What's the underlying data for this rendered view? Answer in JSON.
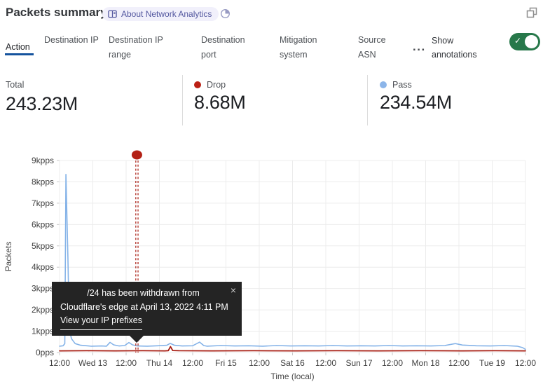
{
  "header": {
    "title": "Packets summary",
    "about_badge": "About Network Analytics"
  },
  "tabs": {
    "items": [
      {
        "label": "Action",
        "selected": true
      },
      {
        "label": "Destination IP",
        "selected": false
      },
      {
        "label": "Destination IP range",
        "selected": false
      },
      {
        "label": "Destination port",
        "selected": false
      },
      {
        "label": "Mitigation system",
        "selected": false
      },
      {
        "label": "Source ASN",
        "selected": false
      }
    ],
    "more_label": "...",
    "show_annotations_label": "Show annotations",
    "annotations_toggle_on": true
  },
  "stats": {
    "items": [
      {
        "label": "Total",
        "value": "243.23M",
        "dot_color": ""
      },
      {
        "label": "Drop",
        "value": "8.68M",
        "dot_color": "#bb2015"
      },
      {
        "label": "Pass",
        "value": "234.54M",
        "dot_color": "#8cb5e9"
      }
    ]
  },
  "tooltip": {
    "line1": "/24 has been withdrawn from",
    "line2": "Cloudflare's edge at April 13, 2022 4:11 PM",
    "link": "View your IP prefixes",
    "close": "×"
  },
  "chart_data": {
    "type": "line",
    "title": "",
    "xlabel": "Time (local)",
    "ylabel": "Packets",
    "x_unit": "hours since Apr 12 2022 12:00 (local)",
    "xlim": [
      0,
      168
    ],
    "ylim": [
      0,
      9000
    ],
    "grid": true,
    "legend_position": "top-stats-row",
    "xtick_hours": [
      0,
      12,
      24,
      36,
      48,
      60,
      72,
      84,
      96,
      108,
      120,
      132,
      144,
      156,
      168
    ],
    "xtick_labels": [
      "12:00",
      "Wed 13",
      "12:00",
      "Thu 14",
      "12:00",
      "Fri 15",
      "12:00",
      "Sat 16",
      "12:00",
      "Sun 17",
      "12:00",
      "Mon 18",
      "12:00",
      "Tue 19",
      "12:00"
    ],
    "ytick_values": [
      0,
      1000,
      2000,
      3000,
      4000,
      5000,
      6000,
      7000,
      8000,
      9000
    ],
    "ytick_labels": [
      "0pps",
      "1kpps",
      "2kpps",
      "3kpps",
      "4kpps",
      "5kpps",
      "6kpps",
      "7kpps",
      "8kpps",
      "9kpps"
    ],
    "series": [
      {
        "name": "Pass",
        "color": "#85b3e8",
        "width": 1.6,
        "points": [
          [
            0,
            300
          ],
          [
            1.3,
            320
          ],
          [
            1.9,
            420
          ],
          [
            2.3,
            8350
          ],
          [
            3.0,
            4500
          ],
          [
            3.5,
            1100
          ],
          [
            4.3,
            650
          ],
          [
            5.6,
            420
          ],
          [
            7.6,
            340
          ],
          [
            11.4,
            300
          ],
          [
            15.2,
            310
          ],
          [
            16.9,
            300
          ],
          [
            18.2,
            480
          ],
          [
            19.5,
            360
          ],
          [
            21.5,
            310
          ],
          [
            23.5,
            330
          ],
          [
            25.0,
            470
          ],
          [
            26.3,
            360
          ],
          [
            28.0,
            310
          ],
          [
            31.6,
            300
          ],
          [
            35.4,
            320
          ],
          [
            38.7,
            340
          ],
          [
            39.9,
            430
          ],
          [
            41.4,
            340
          ],
          [
            44.2,
            310
          ],
          [
            48.0,
            320
          ],
          [
            50.5,
            490
          ],
          [
            52.0,
            330
          ],
          [
            53.1,
            300
          ],
          [
            58.1,
            330
          ],
          [
            63.2,
            310
          ],
          [
            68.2,
            320
          ],
          [
            73.3,
            300
          ],
          [
            78.3,
            330
          ],
          [
            83.4,
            310
          ],
          [
            88.4,
            320
          ],
          [
            93.5,
            310
          ],
          [
            98.5,
            330
          ],
          [
            103.6,
            310
          ],
          [
            108.6,
            320
          ],
          [
            113.7,
            310
          ],
          [
            118.7,
            330
          ],
          [
            123.8,
            310
          ],
          [
            128.8,
            320
          ],
          [
            133.9,
            310
          ],
          [
            138.9,
            330
          ],
          [
            142.7,
            420
          ],
          [
            145.3,
            350
          ],
          [
            150.3,
            320
          ],
          [
            155.4,
            310
          ],
          [
            160.4,
            330
          ],
          [
            165.0,
            300
          ],
          [
            167.0,
            230
          ],
          [
            168,
            150
          ]
        ]
      },
      {
        "name": "Drop",
        "color": "#a61b10",
        "width": 1.8,
        "points": [
          [
            0,
            80
          ],
          [
            10,
            85
          ],
          [
            20,
            80
          ],
          [
            30,
            85
          ],
          [
            38,
            80
          ],
          [
            39.2,
            90
          ],
          [
            40,
            280
          ],
          [
            40.8,
            95
          ],
          [
            43,
            85
          ],
          [
            55,
            80
          ],
          [
            70,
            85
          ],
          [
            85,
            80
          ],
          [
            100,
            85
          ],
          [
            115,
            80
          ],
          [
            130,
            85
          ],
          [
            145,
            80
          ],
          [
            157,
            85
          ],
          [
            168,
            80
          ]
        ]
      }
    ],
    "annotation": {
      "x_hour": 27.9,
      "color": "#b32015",
      "date_label": "April 13, 2022 4:11 PM"
    }
  }
}
